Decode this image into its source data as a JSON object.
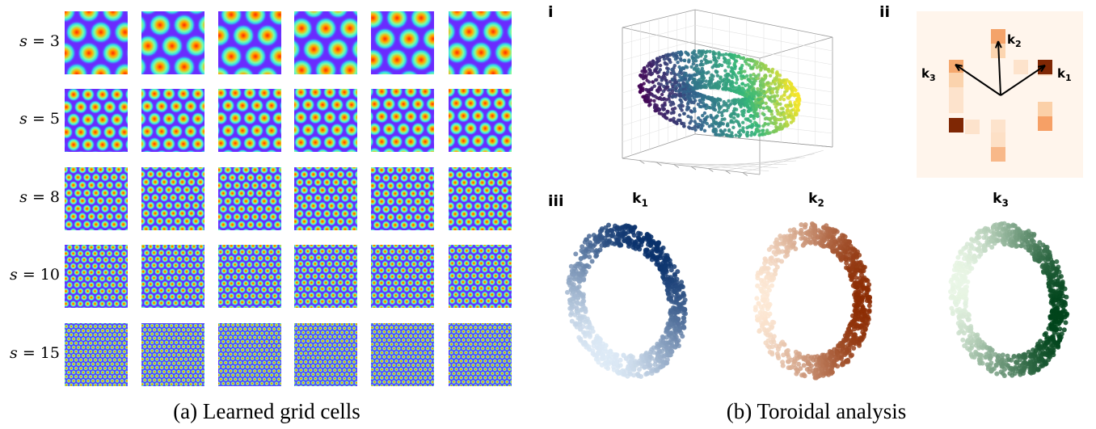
{
  "grid_panel": {
    "caption": "(a) Learned grid cells",
    "rows": [
      {
        "label_var": "s",
        "label_eq": "= 3",
        "scale": 3
      },
      {
        "label_var": "s",
        "label_eq": "= 5",
        "scale": 5
      },
      {
        "label_var": "s",
        "label_eq": "= 8",
        "scale": 8
      },
      {
        "label_var": "s",
        "label_eq": "= 10",
        "scale": 10
      },
      {
        "label_var": "s",
        "label_eq": "= 15",
        "scale": 15
      }
    ],
    "columns": 6,
    "colormap": [
      "#6a2bff",
      "#2fd5ee",
      "#ff2a00"
    ]
  },
  "toroidal_panel": {
    "caption": "(b) Toroidal analysis",
    "panel_i_label": "i",
    "panel_ii_label": "ii",
    "panel_iii_label": "iii",
    "vector_labels": {
      "k1": "k",
      "k1_sub": "1",
      "k2": "k",
      "k2_sub": "2",
      "k3": "k",
      "k3_sub": "3"
    },
    "ring_labels": [
      {
        "main": "k",
        "sub": "1",
        "palette": [
          "#ddeaf6",
          "#08306b"
        ]
      },
      {
        "main": "k",
        "sub": "2",
        "palette": [
          "#fde8d4",
          "#8c2d04"
        ]
      },
      {
        "main": "k",
        "sub": "3",
        "palette": [
          "#e9f6e5",
          "#00441b"
        ]
      }
    ],
    "torus_palette": [
      "#440154",
      "#31688e",
      "#35b779",
      "#fde725"
    ]
  }
}
